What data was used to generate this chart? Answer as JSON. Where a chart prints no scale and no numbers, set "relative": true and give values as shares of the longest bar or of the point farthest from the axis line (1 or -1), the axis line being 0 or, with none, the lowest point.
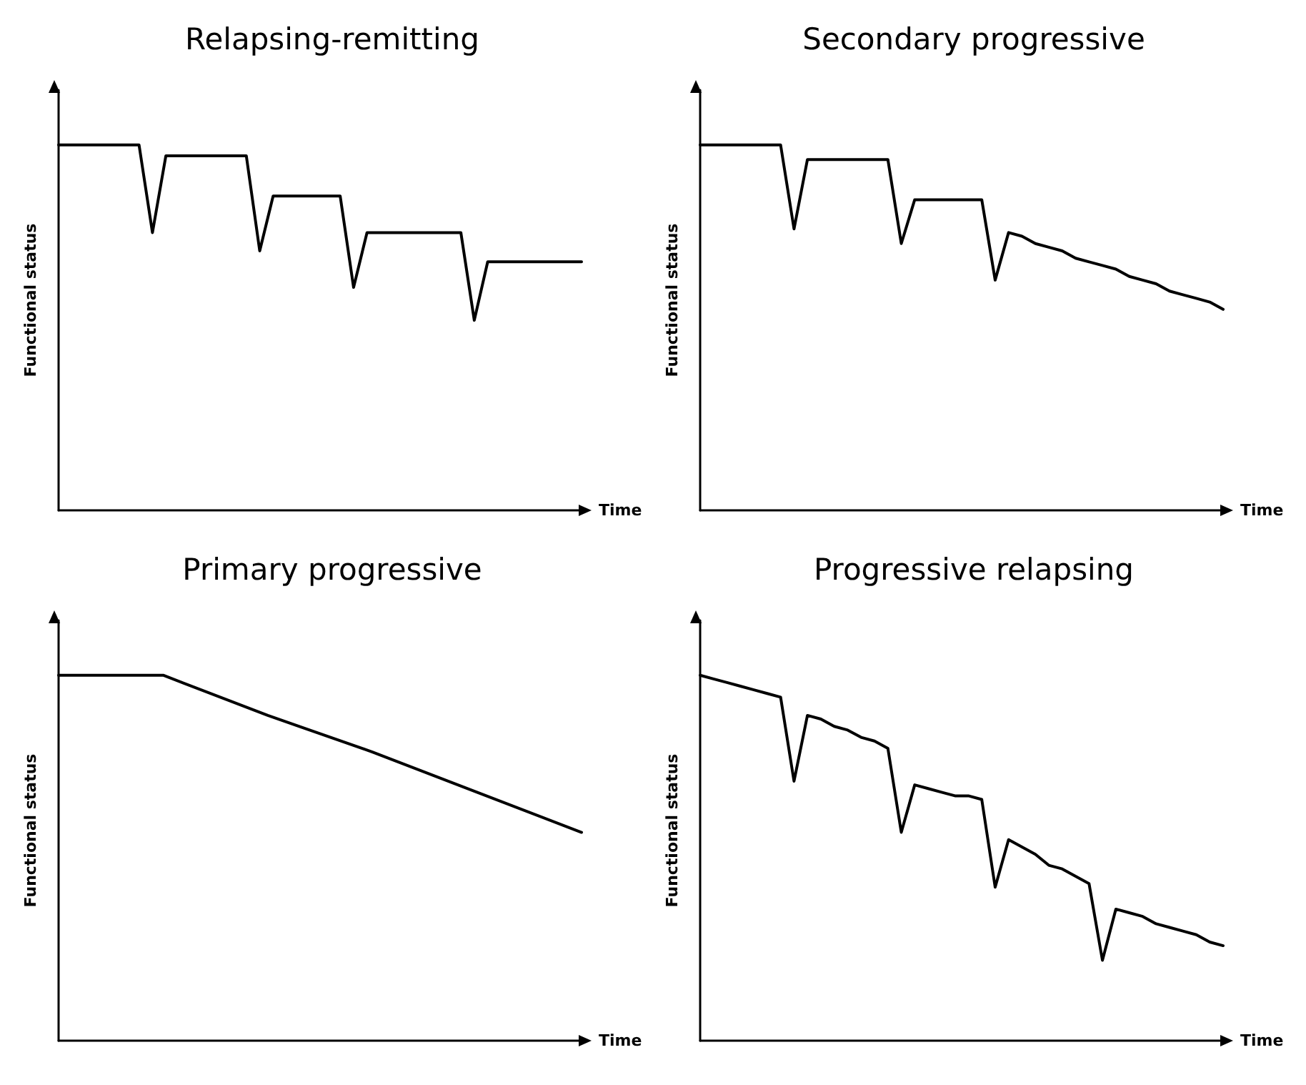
{
  "chart_data": [
    {
      "type": "line",
      "title": "Relapsing-remitting",
      "xlabel": "Time",
      "ylabel": "Functional status",
      "relative": true,
      "marker": "none",
      "line_style": "solid",
      "categories": [
        null,
        null,
        null,
        null,
        null,
        null,
        null,
        null,
        null,
        null,
        null,
        null,
        null,
        null,
        null,
        null,
        null,
        null,
        null,
        null,
        null,
        null,
        null,
        null,
        null,
        null,
        null,
        null,
        null,
        null,
        null,
        null,
        null,
        null,
        null,
        null,
        null,
        null,
        null,
        null
      ],
      "series": [
        {
          "color": "#000000",
          "values": [
            1,
            1,
            1,
            1,
            1,
            1,
            1,
            0.76,
            0.97,
            0.97,
            0.97,
            0.97,
            0.97,
            0.97,
            0.97,
            0.71,
            0.86,
            0.86,
            0.86,
            0.86,
            0.86,
            0.86,
            0.61,
            0.76,
            0.76,
            0.76,
            0.76,
            0.76,
            0.76,
            0.76,
            0.76,
            0.52,
            0.68,
            0.68,
            0.68,
            0.68,
            0.68,
            0.68,
            0.68,
            0.68
          ]
        }
      ]
    },
    {
      "type": "line",
      "title": "Secondary progressive",
      "xlabel": "Time",
      "ylabel": "Functional status",
      "relative": true,
      "marker": "none",
      "line_style": "solid",
      "categories": [
        null,
        null,
        null,
        null,
        null,
        null,
        null,
        null,
        null,
        null,
        null,
        null,
        null,
        null,
        null,
        null,
        null,
        null,
        null,
        null,
        null,
        null,
        null,
        null,
        null,
        null,
        null,
        null,
        null,
        null,
        null,
        null,
        null,
        null,
        null,
        null,
        null,
        null,
        null,
        null
      ],
      "series": [
        {
          "color": "#000000",
          "values": [
            1,
            1,
            1,
            1,
            1,
            1,
            1,
            0.77,
            0.96,
            0.96,
            0.96,
            0.96,
            0.96,
            0.96,
            0.96,
            0.73,
            0.85,
            0.85,
            0.85,
            0.85,
            0.85,
            0.85,
            0.63,
            0.76,
            0.75,
            0.73,
            0.72,
            0.71,
            0.69,
            0.68,
            0.67,
            0.66,
            0.64,
            0.63,
            0.62,
            0.6,
            0.59,
            0.58,
            0.57,
            0.55
          ]
        }
      ]
    },
    {
      "type": "line",
      "title": "Primary progressive",
      "xlabel": "Time",
      "ylabel": "Functional status",
      "relative": true,
      "marker": "none",
      "line_style": "solid",
      "categories": [
        null,
        null,
        null,
        null,
        null,
        null
      ],
      "series": [
        {
          "color": "#000000",
          "values": [
            1,
            1,
            0.89,
            0.79,
            0.68,
            0.57
          ]
        }
      ]
    },
    {
      "type": "line",
      "title": "Progressive relapsing",
      "xlabel": "Time",
      "ylabel": "Functional status",
      "relative": true,
      "marker": "none",
      "line_style": "solid",
      "categories": [
        null,
        null,
        null,
        null,
        null,
        null,
        null,
        null,
        null,
        null,
        null,
        null,
        null,
        null,
        null,
        null,
        null,
        null,
        null,
        null,
        null,
        null,
        null,
        null,
        null,
        null,
        null,
        null,
        null,
        null,
        null,
        null,
        null,
        null,
        null,
        null,
        null,
        null,
        null,
        null
      ],
      "series": [
        {
          "color": "#000000",
          "values": [
            1,
            0.99,
            0.98,
            0.97,
            0.96,
            0.95,
            0.94,
            0.71,
            0.89,
            0.88,
            0.86,
            0.85,
            0.83,
            0.82,
            0.8,
            0.57,
            0.7,
            0.69,
            0.68,
            0.67,
            0.67,
            0.66,
            0.42,
            0.55,
            0.53,
            0.51,
            0.48,
            0.47,
            0.45,
            0.43,
            0.22,
            0.36,
            0.35,
            0.34,
            0.32,
            0.31,
            0.3,
            0.29,
            0.27,
            0.26
          ]
        }
      ]
    }
  ]
}
